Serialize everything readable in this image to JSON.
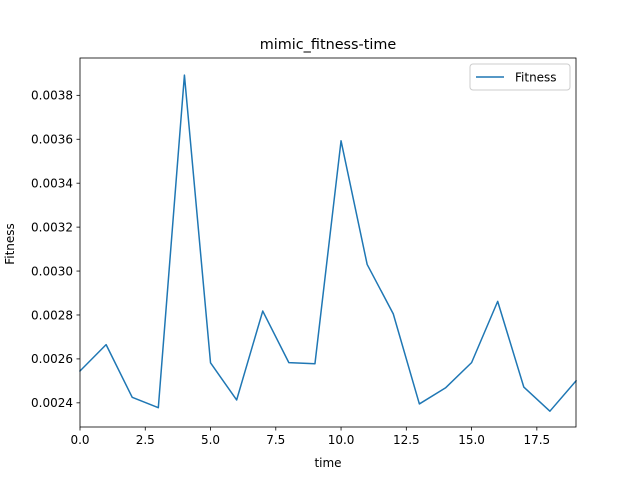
{
  "chart_data": {
    "type": "line",
    "title": "mimic_fitness-time",
    "xlabel": "time",
    "ylabel": "Fitness",
    "xlim": [
      0,
      19
    ],
    "ylim": [
      0.00229,
      0.00397
    ],
    "x_ticks": [
      0.0,
      2.5,
      5.0,
      7.5,
      10.0,
      12.5,
      15.0,
      17.5
    ],
    "x_tick_labels": [
      "0.0",
      "2.5",
      "5.0",
      "7.5",
      "10.0",
      "12.5",
      "15.0",
      "17.5"
    ],
    "y_ticks": [
      0.0024,
      0.0026,
      0.0028,
      0.003,
      0.0032,
      0.0034,
      0.0036,
      0.0038
    ],
    "y_tick_labels": [
      "0.0024",
      "0.0026",
      "0.0028",
      "0.0030",
      "0.0032",
      "0.0034",
      "0.0036",
      "0.0038"
    ],
    "grid": false,
    "legend": "top-right",
    "series": [
      {
        "name": "Fitness",
        "color": "#1f77b4",
        "x": [
          0,
          1,
          2,
          3,
          4,
          5,
          6,
          7,
          8,
          9,
          10,
          11,
          12,
          13,
          14,
          15,
          16,
          17,
          18,
          19
        ],
        "y": [
          0.002545,
          0.002665,
          0.002425,
          0.002378,
          0.003892,
          0.002582,
          0.002413,
          0.002818,
          0.002583,
          0.002578,
          0.003593,
          0.00303,
          0.002805,
          0.002395,
          0.002468,
          0.002583,
          0.002862,
          0.002472,
          0.002362,
          0.0025
        ]
      }
    ]
  }
}
